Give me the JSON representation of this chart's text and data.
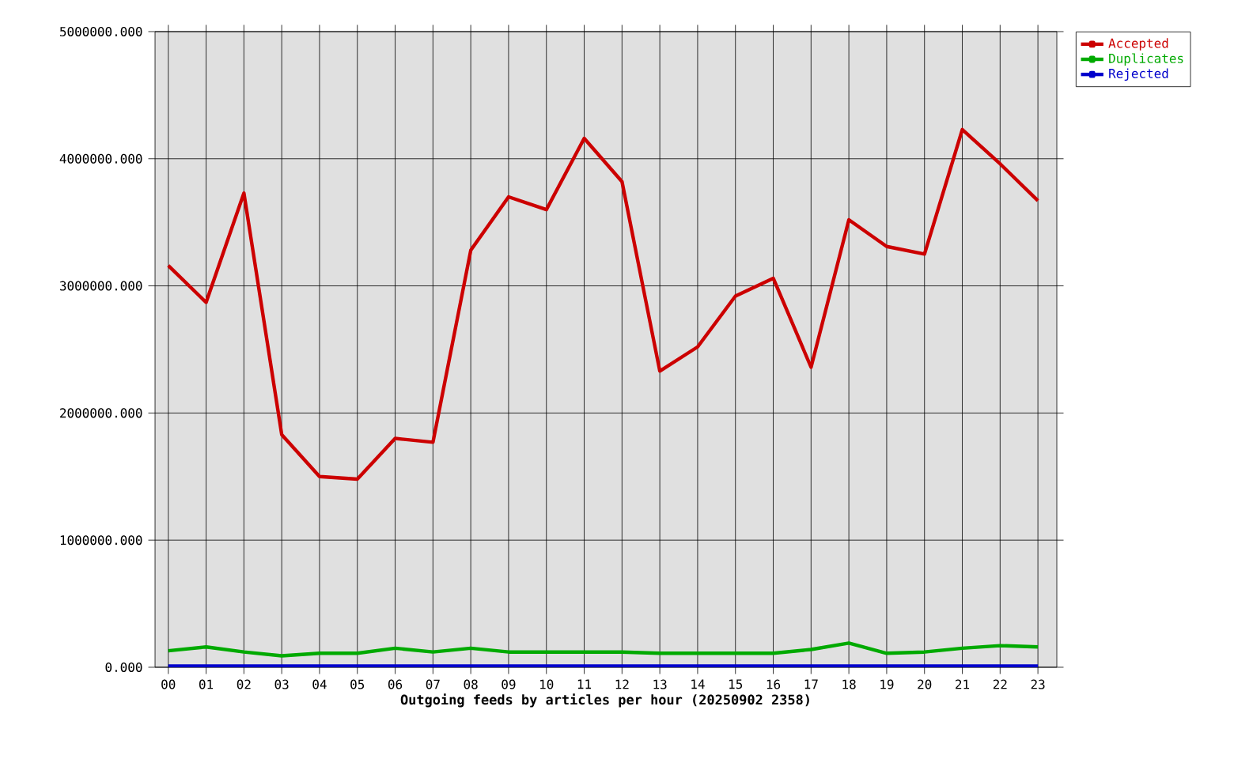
{
  "chart_data": {
    "type": "line",
    "xlabel": "Outgoing feeds by articles per hour (20250902 2358)",
    "categories": [
      "00",
      "01",
      "02",
      "03",
      "04",
      "05",
      "06",
      "07",
      "08",
      "09",
      "10",
      "11",
      "12",
      "13",
      "14",
      "15",
      "16",
      "17",
      "18",
      "19",
      "20",
      "21",
      "22",
      "23"
    ],
    "series": [
      {
        "name": "Accepted",
        "color": "#cc0000",
        "values": [
          3160000,
          2870000,
          3730000,
          1830000,
          1500000,
          1480000,
          1800000,
          1770000,
          3280000,
          3700000,
          3600000,
          4160000,
          3820000,
          2330000,
          2520000,
          2920000,
          3060000,
          2360000,
          3520000,
          3310000,
          3250000,
          4230000,
          3960000,
          3670000
        ]
      },
      {
        "name": "Duplicates",
        "color": "#00aa00",
        "values": [
          130000,
          160000,
          120000,
          90000,
          110000,
          110000,
          150000,
          120000,
          150000,
          120000,
          120000,
          120000,
          120000,
          110000,
          110000,
          110000,
          110000,
          140000,
          190000,
          110000,
          120000,
          150000,
          170000,
          160000
        ]
      },
      {
        "name": "Rejected",
        "color": "#0000cc",
        "values": [
          10000,
          10000,
          10000,
          10000,
          10000,
          10000,
          10000,
          10000,
          10000,
          10000,
          10000,
          10000,
          10000,
          10000,
          10000,
          10000,
          10000,
          10000,
          10000,
          10000,
          10000,
          10000,
          10000,
          10000
        ]
      }
    ],
    "ylim": [
      0,
      5000000
    ],
    "yticks": [
      {
        "value": 0,
        "label": "0.000"
      },
      {
        "value": 1000000,
        "label": "1000000.000"
      },
      {
        "value": 2000000,
        "label": "2000000.000"
      },
      {
        "value": 3000000,
        "label": "3000000.000"
      },
      {
        "value": 4000000,
        "label": "4000000.000"
      },
      {
        "value": 5000000,
        "label": "5000000.000"
      }
    ],
    "grid": true,
    "legend": "top right",
    "line_style": "solid"
  }
}
